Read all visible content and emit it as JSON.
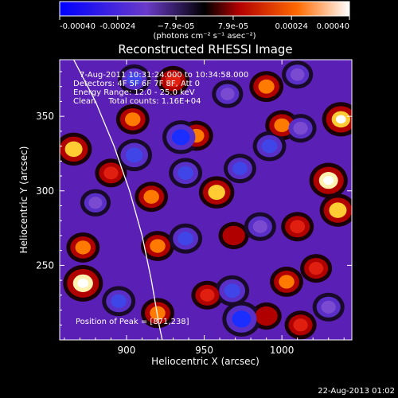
{
  "chart_data": {
    "type": "heatmap",
    "title": "Reconstructed RHESSI Image",
    "xlabel": "Heliocentric X (arcsec)",
    "ylabel": "Heliocentric Y (arcsec)",
    "xlim": [
      857,
      1045
    ],
    "ylim": [
      200,
      388
    ],
    "xticks": [
      900,
      950,
      1000
    ],
    "xtick_labels": [
      "900",
      "950",
      "1000"
    ],
    "yticks": [
      250,
      300,
      350
    ],
    "ytick_labels": [
      "250",
      "300",
      "350"
    ],
    "colorbar": {
      "range": [
        -0.0004,
        0.0004
      ],
      "ticks": [
        -0.0004,
        -0.00024,
        -7.9e-05,
        7.9e-05,
        0.00024,
        0.0004
      ],
      "tick_labels": [
        "-0.00040",
        "-0.00024",
        "−7.9e-05",
        "7.9e-05",
        "0.00024",
        "0.00040"
      ],
      "unit_label": "(photons cm⁻² s⁻¹ asec⁻²)",
      "colors": [
        "#0000ff",
        "#6a3bc8",
        "#000000",
        "#b40000",
        "#ff6a00",
        "#ffffff"
      ]
    },
    "annotations": [
      "7-Aug-2011 10:31:24.000 to 10:34:58.000",
      "Detectors: 4F 5F 6F 7F 8F, Att 0",
      "Energy Range: 12.0 - 25.0 keV",
      "Clean     Total counts: 1.16E+04"
    ],
    "peak_label": "Position of Peak = [871,238]",
    "peak_position": [
      871,
      238
    ],
    "limb_curve": [
      [
        866,
        388
      ],
      [
        880,
        360
      ],
      [
        892,
        330
      ],
      [
        902,
        300
      ],
      [
        910,
        270
      ],
      [
        916,
        240
      ],
      [
        921,
        210
      ],
      [
        923,
        200
      ]
    ],
    "blobs": [
      {
        "x": 872,
        "y": 238,
        "v": 1.0
      },
      {
        "x": 866,
        "y": 328,
        "v": 0.75
      },
      {
        "x": 872,
        "y": 262,
        "v": 0.55
      },
      {
        "x": 904,
        "y": 348,
        "v": 0.55
      },
      {
        "x": 916,
        "y": 296,
        "v": 0.55
      },
      {
        "x": 945,
        "y": 337,
        "v": 0.55
      },
      {
        "x": 958,
        "y": 299,
        "v": 0.7
      },
      {
        "x": 920,
        "y": 263,
        "v": 0.55
      },
      {
        "x": 990,
        "y": 370,
        "v": 0.6
      },
      {
        "x": 1000,
        "y": 344,
        "v": 0.55
      },
      {
        "x": 1038,
        "y": 348,
        "v": 0.85
      },
      {
        "x": 1030,
        "y": 307,
        "v": 0.9
      },
      {
        "x": 1036,
        "y": 287,
        "v": 0.75
      },
      {
        "x": 1010,
        "y": 276,
        "v": 0.5
      },
      {
        "x": 1003,
        "y": 239,
        "v": 0.55
      },
      {
        "x": 1022,
        "y": 248,
        "v": 0.45
      },
      {
        "x": 952,
        "y": 230,
        "v": 0.45
      },
      {
        "x": 920,
        "y": 218,
        "v": 0.55
      },
      {
        "x": 1012,
        "y": 210,
        "v": 0.45
      },
      {
        "x": 990,
        "y": 216,
        "v": 0.35
      },
      {
        "x": 930,
        "y": 374,
        "v": 0.5
      },
      {
        "x": 969,
        "y": 270,
        "v": 0.35
      },
      {
        "x": 890,
        "y": 312,
        "v": 0.45
      },
      {
        "x": 905,
        "y": 324,
        "v": -0.7
      },
      {
        "x": 935,
        "y": 336,
        "v": -0.8
      },
      {
        "x": 938,
        "y": 312,
        "v": -0.55
      },
      {
        "x": 973,
        "y": 315,
        "v": -0.5
      },
      {
        "x": 992,
        "y": 330,
        "v": -0.55
      },
      {
        "x": 1012,
        "y": 342,
        "v": -0.45
      },
      {
        "x": 974,
        "y": 214,
        "v": -0.9
      },
      {
        "x": 968,
        "y": 233,
        "v": -0.6
      },
      {
        "x": 938,
        "y": 268,
        "v": -0.55
      },
      {
        "x": 986,
        "y": 276,
        "v": -0.45
      },
      {
        "x": 895,
        "y": 226,
        "v": -0.55
      },
      {
        "x": 1030,
        "y": 222,
        "v": -0.45
      },
      {
        "x": 905,
        "y": 375,
        "v": -0.5
      },
      {
        "x": 965,
        "y": 365,
        "v": -0.4
      },
      {
        "x": 1010,
        "y": 378,
        "v": -0.4
      },
      {
        "x": 880,
        "y": 292,
        "v": -0.35
      }
    ]
  },
  "footer": {
    "timestamp": "22-Aug-2013 01:02"
  }
}
